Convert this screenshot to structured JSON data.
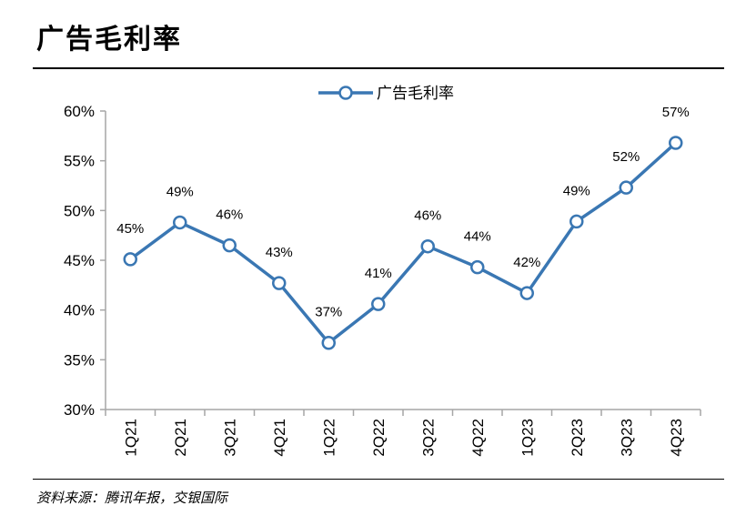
{
  "header": {
    "title": "广告毛利率"
  },
  "footer": {
    "source": "资料来源：腾讯年报，交银国际"
  },
  "chart_data": {
    "type": "line",
    "title": "",
    "xlabel": "",
    "ylabel": "",
    "categories": [
      "1Q21",
      "2Q21",
      "3Q21",
      "4Q21",
      "1Q22",
      "2Q22",
      "3Q22",
      "4Q22",
      "1Q23",
      "2Q23",
      "3Q23",
      "4Q23"
    ],
    "series": [
      {
        "name": "广告毛利率",
        "values": [
          45,
          49,
          46,
          43,
          37,
          41,
          46,
          44,
          42,
          49,
          52,
          57
        ],
        "plotted_values": [
          45.1,
          48.8,
          46.5,
          42.7,
          36.7,
          40.6,
          46.4,
          44.3,
          41.7,
          48.9,
          52.3,
          56.8
        ],
        "labels": [
          "45%",
          "49%",
          "46%",
          "43%",
          "37%",
          "41%",
          "46%",
          "44%",
          "42%",
          "49%",
          "52%",
          "57%"
        ]
      }
    ],
    "yticks": [
      "30%",
      "35%",
      "40%",
      "45%",
      "50%",
      "55%",
      "60%"
    ],
    "ytick_values": [
      30,
      35,
      40,
      45,
      50,
      55,
      60
    ],
    "ylim": [
      30,
      60
    ],
    "grid": false,
    "legend_position": "top-center",
    "colors": {
      "line": "#3a77b3",
      "marker_fill": "#ffffff",
      "axis": "#a6a6a6"
    }
  }
}
